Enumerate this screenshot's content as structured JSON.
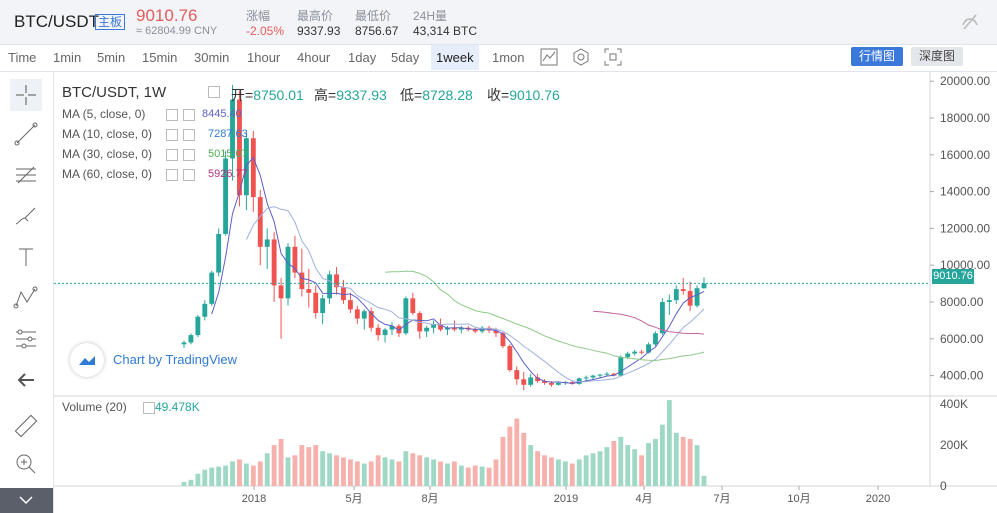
{
  "header": {
    "pair": "BTC/USDT",
    "badge": "主板",
    "price": "9010.76",
    "cny": "≈ 62804.99 CNY",
    "stats": [
      {
        "label": "涨幅",
        "value": "-2.05%"
      },
      {
        "label": "最高价",
        "value": "9337.93"
      },
      {
        "label": "最低价",
        "value": "8756.67"
      },
      {
        "label": "24H量",
        "value": "43,314 BTC"
      }
    ]
  },
  "timeframes": [
    "Time",
    "1min",
    "5min",
    "15min",
    "30min",
    "1hour",
    "4hour",
    "1day",
    "5day",
    "1week",
    "1mon"
  ],
  "active_timeframe": "1week",
  "buttons": {
    "market": "行情图",
    "depth": "深度图"
  },
  "chart": {
    "title": "BTC/USDT, 1W",
    "open_label": "开=",
    "open": "8750.01",
    "high_label": "高=",
    "high": "9337.93",
    "low_label": "低=",
    "low": "8728.28",
    "close_label": "收=",
    "close": "9010.76",
    "ma": [
      {
        "label": "MA (5, close, 0)",
        "value": "8445.40",
        "color": "#5b5fc7"
      },
      {
        "label": "MA (10, close, 0)",
        "value": "7287.63",
        "color": "#2f7bd6"
      },
      {
        "label": "MA (30, close, 0)",
        "value": "5015.07",
        "color": "#4caf50"
      },
      {
        "label": "MA (60, close, 0)",
        "value": "5926.77",
        "color": "#b5327e"
      }
    ],
    "tv_brand": "Chart by TradingView",
    "volume_label": "Volume (20)",
    "volume_value": "49.478K",
    "last_price": "9010.76",
    "price_ticks": [
      "20000.00",
      "18000.00",
      "16000.00",
      "14000.00",
      "12000.00",
      "10000.00",
      "8000.00",
      "6000.00",
      "4000.00"
    ],
    "volume_ticks": [
      "400K",
      "200K",
      "0"
    ],
    "x_ticks": [
      "2018",
      "5月",
      "8月",
      "2019",
      "4月",
      "7月",
      "10月",
      "2020"
    ]
  },
  "chart_data": {
    "type": "candlestick",
    "title": "BTC/USDT, 1W",
    "ylim": [
      3000,
      20500
    ],
    "volume_ylim": [
      0,
      440000
    ],
    "candles": [
      [
        5700,
        5900,
        5500,
        5800,
        20000
      ],
      [
        5800,
        6300,
        5700,
        6200,
        30000
      ],
      [
        6200,
        7300,
        6100,
        7200,
        60000
      ],
      [
        7200,
        8100,
        7000,
        7900,
        80000
      ],
      [
        7900,
        9700,
        7800,
        9600,
        90000
      ],
      [
        9600,
        12000,
        9400,
        11700,
        95000
      ],
      [
        11700,
        16200,
        11600,
        15800,
        100000
      ],
      [
        15800,
        19800,
        14600,
        19000,
        120000
      ],
      [
        19000,
        19500,
        13200,
        13800,
        130000
      ],
      [
        13800,
        17200,
        13000,
        16900,
        110000
      ],
      [
        16900,
        17300,
        12900,
        13700,
        100000
      ],
      [
        13700,
        14100,
        10000,
        11000,
        120000
      ],
      [
        11000,
        12000,
        9800,
        11400,
        160000
      ],
      [
        11400,
        11800,
        8000,
        8900,
        200000
      ],
      [
        8900,
        9300,
        6000,
        8200,
        230000
      ],
      [
        8200,
        11200,
        7800,
        11000,
        140000
      ],
      [
        11000,
        11600,
        9300,
        9600,
        150000
      ],
      [
        9600,
        10900,
        8300,
        8700,
        200000
      ],
      [
        8700,
        9800,
        7700,
        8500,
        190000
      ],
      [
        8500,
        8900,
        7100,
        7400,
        200000
      ],
      [
        7400,
        8400,
        6800,
        8200,
        170000
      ],
      [
        8200,
        9700,
        7900,
        9500,
        160000
      ],
      [
        9500,
        9900,
        8400,
        8800,
        150000
      ],
      [
        8800,
        9200,
        7900,
        8100,
        140000
      ],
      [
        8100,
        8500,
        7400,
        7600,
        130000
      ],
      [
        7600,
        7800,
        6800,
        7100,
        120000
      ],
      [
        7100,
        7600,
        6500,
        7500,
        110000
      ],
      [
        7500,
        7700,
        6400,
        6600,
        120000
      ],
      [
        6600,
        6800,
        5900,
        6200,
        150000
      ],
      [
        6200,
        6600,
        5800,
        6500,
        140000
      ],
      [
        6500,
        6900,
        6200,
        6700,
        130000
      ],
      [
        6700,
        6800,
        6100,
        6300,
        120000
      ],
      [
        6300,
        8300,
        6200,
        8200,
        170000
      ],
      [
        8200,
        8500,
        7300,
        7400,
        160000
      ],
      [
        7400,
        7500,
        6000,
        6400,
        150000
      ],
      [
        6400,
        6700,
        6100,
        6600,
        140000
      ],
      [
        6600,
        7000,
        6300,
        6800,
        130000
      ],
      [
        6800,
        7100,
        6400,
        6500,
        120000
      ],
      [
        6500,
        6700,
        6200,
        6600,
        110000
      ],
      [
        6600,
        7000,
        6400,
        6500,
        120000
      ],
      [
        6500,
        6700,
        6300,
        6600,
        100000
      ],
      [
        6600,
        6700,
        6400,
        6500,
        90000
      ],
      [
        6500,
        6600,
        6300,
        6400,
        100000
      ],
      [
        6400,
        6700,
        6300,
        6600,
        95000
      ],
      [
        6600,
        6700,
        6300,
        6450,
        90000
      ],
      [
        6450,
        6600,
        6100,
        6300,
        130000
      ],
      [
        6300,
        6400,
        5500,
        5600,
        240000
      ],
      [
        5600,
        5700,
        4200,
        4300,
        290000
      ],
      [
        4300,
        4500,
        3500,
        3800,
        330000
      ],
      [
        3800,
        4200,
        3200,
        3500,
        260000
      ],
      [
        3500,
        4100,
        3400,
        3900,
        200000
      ],
      [
        3900,
        4100,
        3600,
        3700,
        170000
      ],
      [
        3700,
        3800,
        3500,
        3600,
        150000
      ],
      [
        3600,
        3700,
        3400,
        3500,
        140000
      ],
      [
        3500,
        3650,
        3450,
        3600,
        130000
      ],
      [
        3600,
        3700,
        3500,
        3650,
        120000
      ],
      [
        3650,
        3750,
        3500,
        3550,
        110000
      ],
      [
        3550,
        3900,
        3500,
        3850,
        130000
      ],
      [
        3850,
        4000,
        3700,
        3900,
        150000
      ],
      [
        3900,
        4050,
        3800,
        4000,
        160000
      ],
      [
        4000,
        4100,
        3900,
        4050,
        170000
      ],
      [
        4050,
        4200,
        3950,
        4100,
        190000
      ],
      [
        4100,
        4150,
        3950,
        4000,
        220000
      ],
      [
        4000,
        5100,
        3950,
        5000,
        240000
      ],
      [
        5000,
        5300,
        4900,
        5200,
        200000
      ],
      [
        5200,
        5400,
        5100,
        5300,
        180000
      ],
      [
        5300,
        5400,
        5150,
        5250,
        150000
      ],
      [
        5250,
        5800,
        5200,
        5700,
        210000
      ],
      [
        5700,
        6400,
        5600,
        6300,
        230000
      ],
      [
        6300,
        8200,
        6200,
        8000,
        300000
      ],
      [
        8000,
        8400,
        7300,
        8100,
        420000
      ],
      [
        8100,
        8900,
        7900,
        8700,
        260000
      ],
      [
        8700,
        9300,
        8400,
        8600,
        240000
      ],
      [
        8600,
        9100,
        7500,
        7800,
        230000
      ],
      [
        7800,
        8900,
        7700,
        8750,
        200000
      ],
      [
        8750,
        9338,
        8728,
        9011,
        50000
      ]
    ],
    "ma_last": {
      "MA5": 8445.4,
      "MA10": 7287.63,
      "MA30": 5015.07,
      "MA60": 5926.77
    },
    "last_price": 9010.76
  },
  "colors": {
    "up": "#26a69a",
    "down": "#ef5350",
    "accent": "#3a78d9"
  }
}
